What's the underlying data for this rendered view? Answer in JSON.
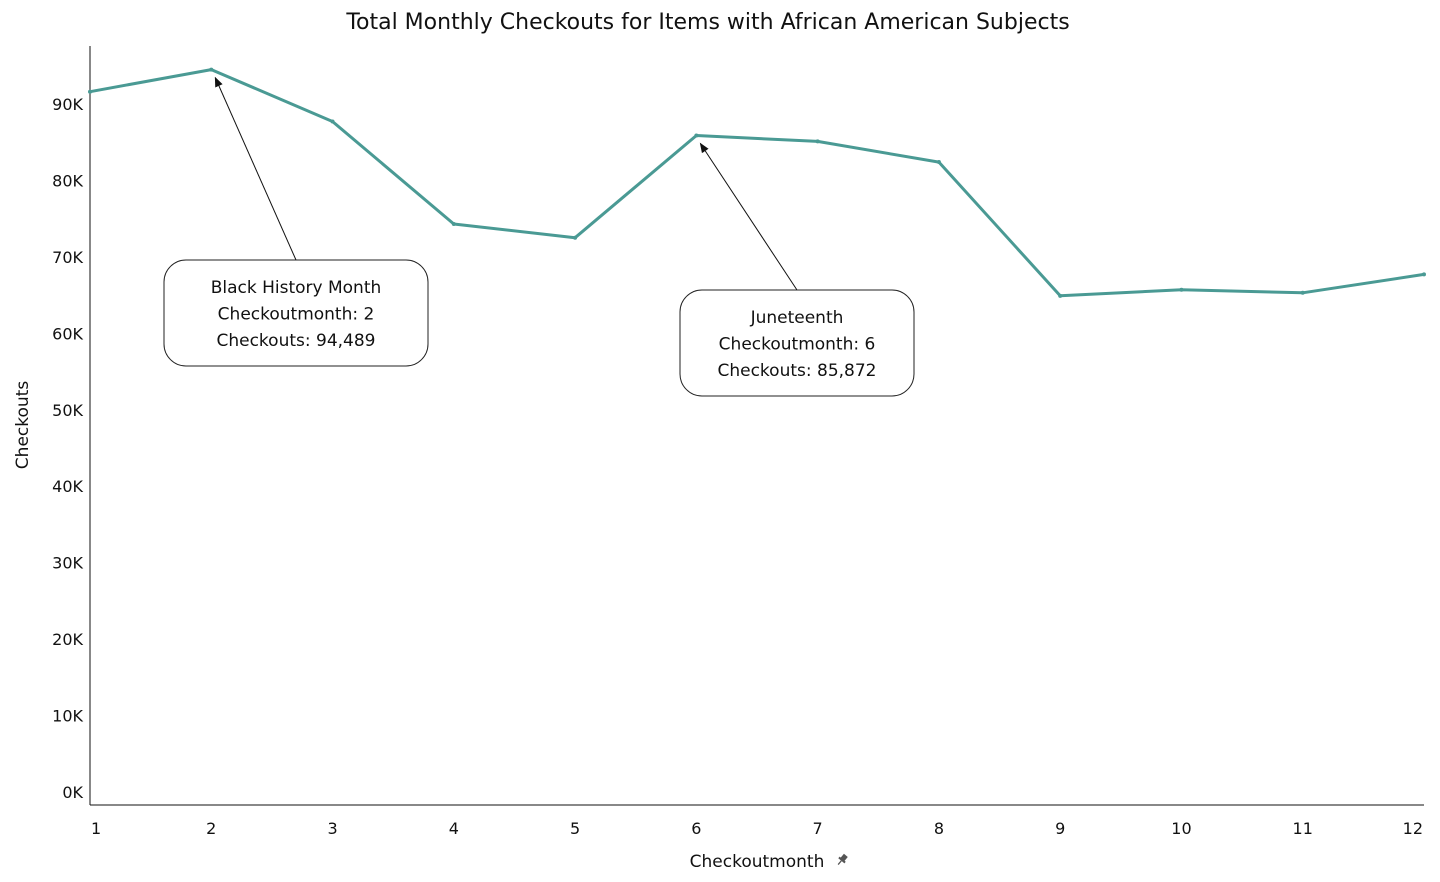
{
  "colors": {
    "series": "#4a9a94",
    "axis": "#111111",
    "background": "#ffffff"
  },
  "icons": {
    "x_axis_pin": "pin-icon"
  },
  "chart_data": {
    "type": "line",
    "title": "Total Monthly Checkouts for Items with African American Subjects",
    "xlabel": "Checkoutmonth",
    "ylabel": "Checkouts",
    "x": [
      1,
      2,
      3,
      4,
      5,
      6,
      7,
      8,
      9,
      10,
      11,
      12
    ],
    "x_tick_labels": [
      "1",
      "2",
      "3",
      "4",
      "5",
      "6",
      "7",
      "8",
      "9",
      "10",
      "11",
      "12"
    ],
    "ylim": [
      0,
      99000
    ],
    "y_ticks": [
      0,
      10000,
      20000,
      30000,
      40000,
      50000,
      60000,
      70000,
      80000,
      90000
    ],
    "y_tick_labels": [
      "0K",
      "10K",
      "20K",
      "30K",
      "40K",
      "50K",
      "60K",
      "70K",
      "80K",
      "90K"
    ],
    "grid": false,
    "legend": "none",
    "series": [
      {
        "values": [
          91600,
          94489,
          87700,
          74300,
          72500,
          85872,
          85100,
          82400,
          64900,
          65700,
          65300,
          67700
        ]
      }
    ],
    "annotations": [
      {
        "x": 2,
        "y": 94489,
        "lines": [
          "Black History Month",
          "Checkoutmonth: 2",
          "Checkouts: 94,489"
        ]
      },
      {
        "x": 6,
        "y": 85872,
        "lines": [
          "Juneteenth",
          "Checkoutmonth: 6",
          "Checkouts: 85,872"
        ]
      }
    ]
  }
}
